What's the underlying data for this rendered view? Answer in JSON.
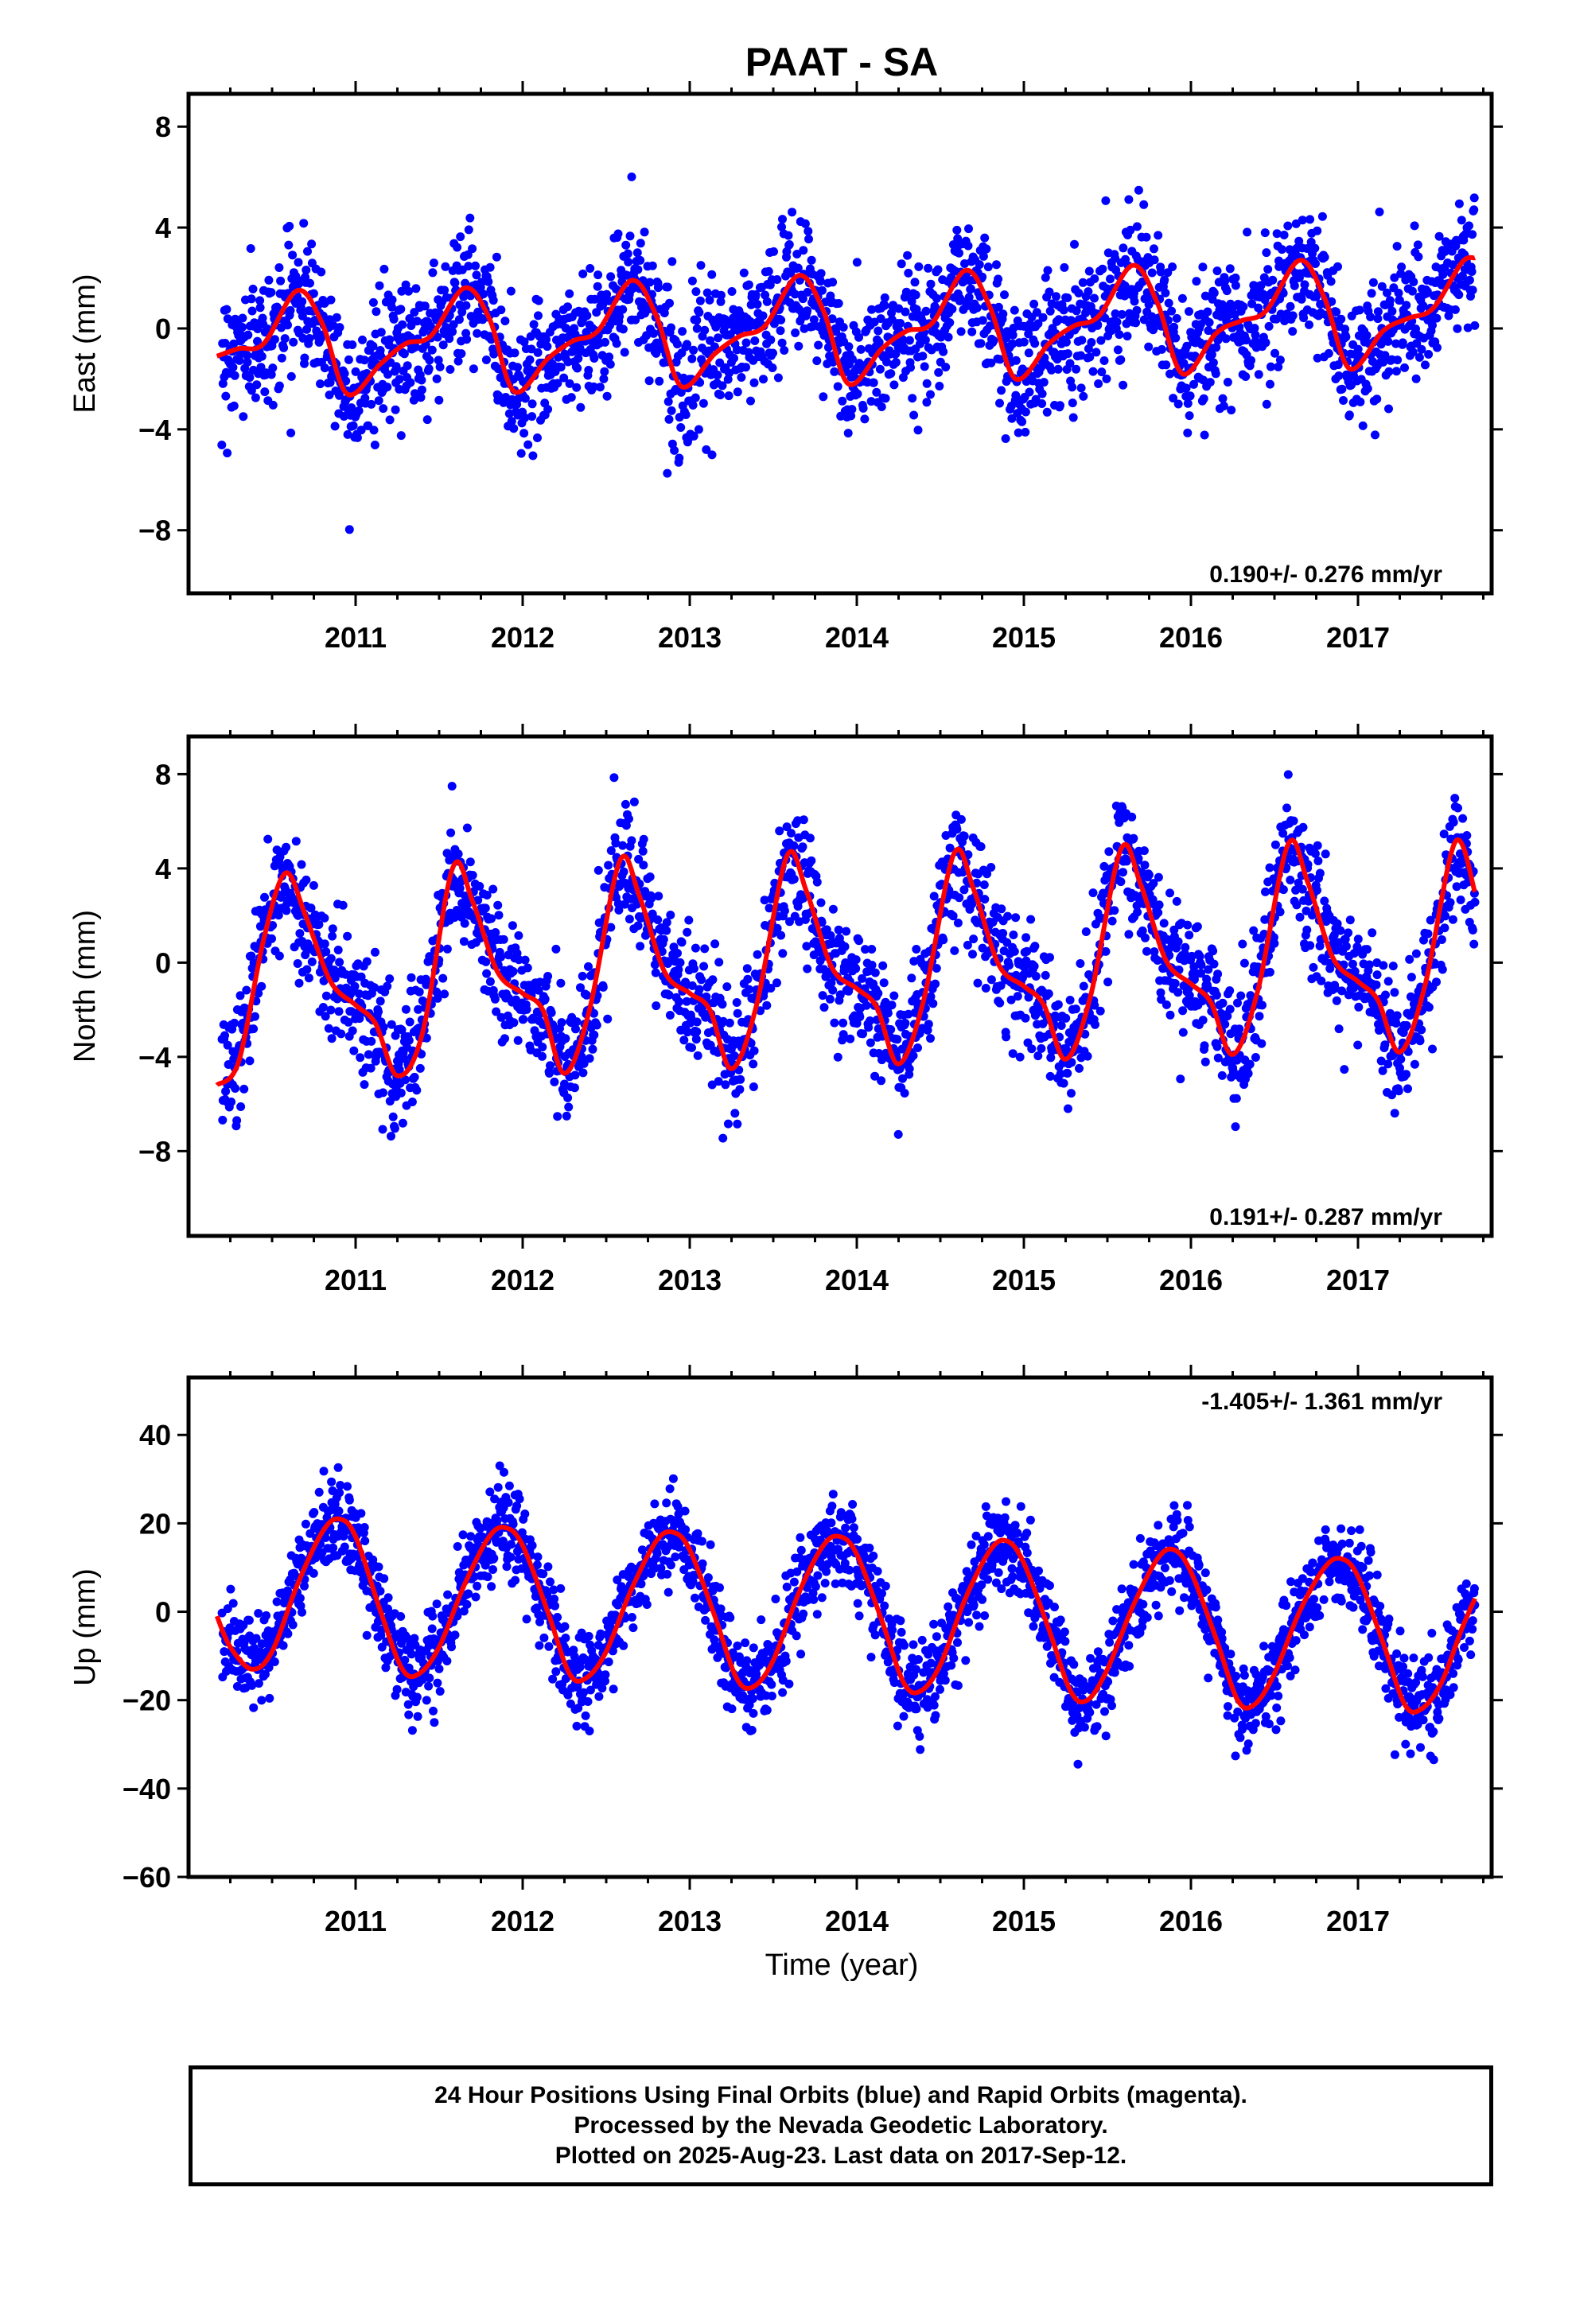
{
  "title": "PAAT - SA",
  "footer": {
    "line1": "24 Hour Positions Using Final Orbits (blue) and Rapid Orbits (magenta).",
    "line2": "Processed by the Nevada Geodetic Laboratory.",
    "line3": "Plotted on 2025-Aug-23. Last data on 2017-Sep-12."
  },
  "colors": {
    "points": "#0000ff",
    "model": "#ff0000",
    "axes": "#000000"
  },
  "chart_data": [
    {
      "type": "scatter",
      "ylabel": "East (mm)",
      "xlabel": "",
      "xlim": [
        2010.0,
        2017.8
      ],
      "ylim": [
        -10.5,
        9.3
      ],
      "x_ticks": [
        2011,
        2012,
        2013,
        2014,
        2015,
        2016,
        2017
      ],
      "y_ticks": [
        -8,
        -4,
        0,
        4,
        8
      ],
      "y_tick_labels": [
        "−8",
        "−4",
        "0",
        "4",
        "8"
      ],
      "rate": "0.190+/- 0.276 mm/yr",
      "rate_position": "bottom-right",
      "series": [
        {
          "kind": "points",
          "start": 2010.2,
          "end": 2017.7,
          "count": 2350,
          "noise_sd": 1.3
        },
        {
          "kind": "model",
          "x": [
            2010.17,
            2010.3,
            2010.45,
            2010.65,
            2010.8,
            2010.95,
            2011.15,
            2011.3,
            2011.45,
            2011.65,
            2011.8,
            2011.95,
            2012.15,
            2012.3,
            2012.45,
            2012.65,
            2012.8,
            2012.95,
            2013.15,
            2013.3,
            2013.45,
            2013.65,
            2013.8,
            2013.95,
            2014.15,
            2014.3,
            2014.45,
            2014.65,
            2014.8,
            2014.95,
            2015.15,
            2015.3,
            2015.45,
            2015.65,
            2015.8,
            2015.95,
            2016.15,
            2016.3,
            2016.45,
            2016.65,
            2016.8,
            2016.95,
            2017.15,
            2017.3,
            2017.45,
            2017.62,
            2017.7
          ],
          "y": [
            -1.1,
            -0.8,
            -0.6,
            1.5,
            0.2,
            -2.6,
            -1.4,
            -0.6,
            -0.3,
            1.6,
            0.4,
            -2.5,
            -1.2,
            -0.5,
            -0.1,
            1.9,
            0.5,
            -2.3,
            -1.0,
            -0.3,
            0.1,
            2.1,
            0.7,
            -2.2,
            -0.8,
            -0.1,
            0.2,
            2.3,
            0.8,
            -2.0,
            -0.6,
            0.1,
            0.5,
            2.5,
            1.0,
            -1.8,
            -0.2,
            0.3,
            0.7,
            2.7,
            1.2,
            -1.6,
            -0.1,
            0.4,
            0.8,
            2.6,
            2.8
          ]
        }
      ]
    },
    {
      "type": "scatter",
      "ylabel": "North (mm)",
      "xlabel": "",
      "xlim": [
        2010.0,
        2017.8
      ],
      "ylim": [
        -11.6,
        9.6
      ],
      "x_ticks": [
        2011,
        2012,
        2013,
        2014,
        2015,
        2016,
        2017
      ],
      "y_ticks": [
        -8,
        -4,
        0,
        4,
        8
      ],
      "y_tick_labels": [
        "−8",
        "−4",
        "0",
        "4",
        "8"
      ],
      "rate": "0.191+/- 0.287 mm/yr",
      "rate_position": "bottom-right",
      "series": [
        {
          "kind": "points",
          "start": 2010.2,
          "end": 2017.7,
          "count": 2350,
          "noise_sd": 1.3
        },
        {
          "kind": "model",
          "x": [
            2010.17,
            2010.3,
            2010.45,
            2010.58,
            2010.7,
            2010.85,
            2011.0,
            2011.12,
            2011.25,
            2011.4,
            2011.58,
            2011.7,
            2011.85,
            2012.0,
            2012.12,
            2012.25,
            2012.4,
            2012.58,
            2012.7,
            2012.85,
            2013.0,
            2013.12,
            2013.25,
            2013.4,
            2013.58,
            2013.7,
            2013.85,
            2014.0,
            2014.12,
            2014.25,
            2014.4,
            2014.58,
            2014.7,
            2014.85,
            2015.0,
            2015.12,
            2015.25,
            2015.4,
            2015.58,
            2015.7,
            2015.85,
            2016.0,
            2016.12,
            2016.25,
            2016.4,
            2016.58,
            2016.7,
            2016.85,
            2017.0,
            2017.12,
            2017.25,
            2017.4,
            2017.58,
            2017.7
          ],
          "y": [
            -5.2,
            -4.2,
            1.0,
            3.8,
            2.0,
            -0.8,
            -1.8,
            -2.6,
            -4.8,
            -3.0,
            4.0,
            2.6,
            -0.4,
            -1.3,
            -2.0,
            -4.7,
            -2.0,
            4.3,
            2.8,
            -0.4,
            -1.3,
            -2.0,
            -4.5,
            -1.8,
            4.5,
            3.0,
            -0.2,
            -1.1,
            -1.9,
            -4.3,
            -1.6,
            4.6,
            3.1,
            -0.1,
            -1.0,
            -1.8,
            -4.1,
            -1.4,
            4.8,
            3.3,
            0.1,
            -0.9,
            -1.7,
            -3.9,
            -1.2,
            5.0,
            3.4,
            0.2,
            -0.8,
            -1.6,
            -3.8,
            -1.0,
            5.1,
            3.0
          ]
        }
      ]
    },
    {
      "type": "scatter",
      "ylabel": "Up (mm)",
      "xlabel": "Time (year)",
      "xlim": [
        2010.0,
        2017.8
      ],
      "ylim": [
        -60,
        53
      ],
      "x_ticks": [
        2011,
        2012,
        2013,
        2014,
        2015,
        2016,
        2017
      ],
      "y_ticks": [
        -60,
        -40,
        -20,
        0,
        20,
        40
      ],
      "y_tick_labels": [
        "−60",
        "−40",
        "−20",
        "0",
        "20",
        "40"
      ],
      "rate": "-1.405+/- 1.361 mm/yr",
      "rate_position": "top-right",
      "series": [
        {
          "kind": "points",
          "start": 2010.2,
          "end": 2017.7,
          "count": 2350,
          "noise_sd": 5.0
        },
        {
          "kind": "model",
          "x": [
            2010.17,
            2010.25,
            2010.38,
            2010.5,
            2010.65,
            2010.8,
            2010.9,
            2011.0,
            2011.15,
            2011.28,
            2011.38,
            2011.5,
            2011.65,
            2011.8,
            2011.9,
            2012.0,
            2012.15,
            2012.28,
            2012.38,
            2012.5,
            2012.65,
            2012.8,
            2012.9,
            2013.0,
            2013.15,
            2013.28,
            2013.38,
            2013.5,
            2013.65,
            2013.8,
            2013.9,
            2014.0,
            2014.15,
            2014.28,
            2014.38,
            2014.5,
            2014.65,
            2014.8,
            2014.9,
            2015.0,
            2015.15,
            2015.28,
            2015.38,
            2015.5,
            2015.65,
            2015.8,
            2015.9,
            2016.0,
            2016.15,
            2016.28,
            2016.38,
            2016.5,
            2016.65,
            2016.8,
            2016.9,
            2017.0,
            2017.15,
            2017.28,
            2017.38,
            2017.5,
            2017.62,
            2017.7
          ],
          "y": [
            -1,
            -8,
            -13,
            -9,
            6,
            18,
            21,
            17,
            0,
            -13,
            -14,
            -8,
            6,
            17,
            19,
            15,
            0,
            -14,
            -15,
            -9,
            5,
            16,
            18,
            14,
            -1,
            -15,
            -17,
            -11,
            4,
            15,
            17,
            13,
            -2,
            -16,
            -18,
            -12,
            3,
            14,
            16,
            11,
            -4,
            -18,
            -20,
            -13,
            1,
            12,
            14,
            9,
            -6,
            -20,
            -21,
            -14,
            0,
            10,
            12,
            8,
            -7,
            -21,
            -22,
            -16,
            -4,
            3
          ]
        }
      ]
    }
  ]
}
